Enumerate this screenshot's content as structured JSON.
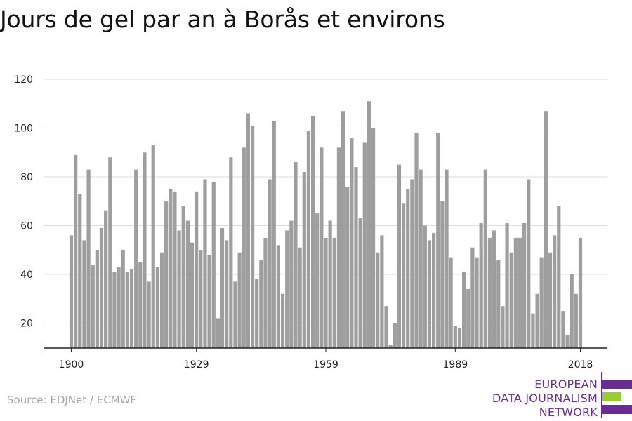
{
  "title": "Jours de gel par an à Borås et environs",
  "source": "Source: EDJNet / ECMWF",
  "logo": {
    "lines": [
      "EUROPEAN",
      "DATA JOURNALISM",
      "NETWORK"
    ],
    "colors": {
      "purple": "#6a2c91",
      "green": "#9acd32"
    }
  },
  "colors": {
    "bar": "#9e9e9e",
    "grid": "#dddddd",
    "axis": "#222222",
    "text": "#222222"
  },
  "chart_data": {
    "type": "bar",
    "title": "Jours de gel par an à Borås et environs",
    "xlabel": "",
    "ylabel": "",
    "ylim": [
      10,
      120
    ],
    "yticks": [
      20,
      40,
      60,
      80,
      100,
      120
    ],
    "xticks": [
      1900,
      1929,
      1959,
      1989,
      2018
    ],
    "grid": true,
    "x": [
      1900,
      1901,
      1902,
      1903,
      1904,
      1905,
      1906,
      1907,
      1908,
      1909,
      1910,
      1911,
      1912,
      1913,
      1914,
      1915,
      1916,
      1917,
      1918,
      1919,
      1920,
      1921,
      1922,
      1923,
      1924,
      1925,
      1926,
      1927,
      1928,
      1929,
      1930,
      1931,
      1932,
      1933,
      1934,
      1935,
      1936,
      1937,
      1938,
      1939,
      1940,
      1941,
      1942,
      1943,
      1944,
      1945,
      1946,
      1947,
      1948,
      1949,
      1950,
      1951,
      1952,
      1953,
      1954,
      1955,
      1956,
      1957,
      1958,
      1959,
      1960,
      1961,
      1962,
      1963,
      1964,
      1965,
      1966,
      1967,
      1968,
      1969,
      1970,
      1971,
      1972,
      1973,
      1974,
      1975,
      1976,
      1977,
      1978,
      1979,
      1980,
      1981,
      1982,
      1983,
      1984,
      1985,
      1986,
      1987,
      1988,
      1989,
      1990,
      1991,
      1992,
      1993,
      1994,
      1995,
      1996,
      1997,
      1998,
      1999,
      2000,
      2001,
      2002,
      2003,
      2004,
      2005,
      2006,
      2007,
      2008,
      2009,
      2010,
      2011,
      2012,
      2013,
      2014,
      2015,
      2016,
      2017,
      2018
    ],
    "values": [
      56,
      89,
      73,
      54,
      83,
      44,
      50,
      59,
      66,
      88,
      41,
      43,
      50,
      41,
      42,
      83,
      45,
      90,
      37,
      93,
      43,
      49,
      70,
      75,
      74,
      58,
      68,
      62,
      53,
      74,
      50,
      79,
      48,
      78,
      22,
      59,
      54,
      88,
      37,
      49,
      92,
      106,
      101,
      38,
      46,
      55,
      79,
      103,
      52,
      32,
      58,
      62,
      86,
      51,
      82,
      99,
      105,
      65,
      92,
      55,
      62,
      55,
      92,
      107,
      76,
      96,
      84,
      63,
      94,
      111,
      100,
      49,
      56,
      27,
      11,
      20,
      85,
      69,
      75,
      79,
      98,
      83,
      60,
      54,
      57,
      98,
      70,
      83,
      47,
      19,
      18,
      41,
      34,
      51,
      47,
      61,
      83,
      55,
      58,
      46,
      27,
      61,
      49,
      55,
      55,
      61,
      79,
      24,
      32,
      47,
      107,
      49,
      56,
      68,
      25,
      15,
      40,
      32,
      55
    ]
  }
}
